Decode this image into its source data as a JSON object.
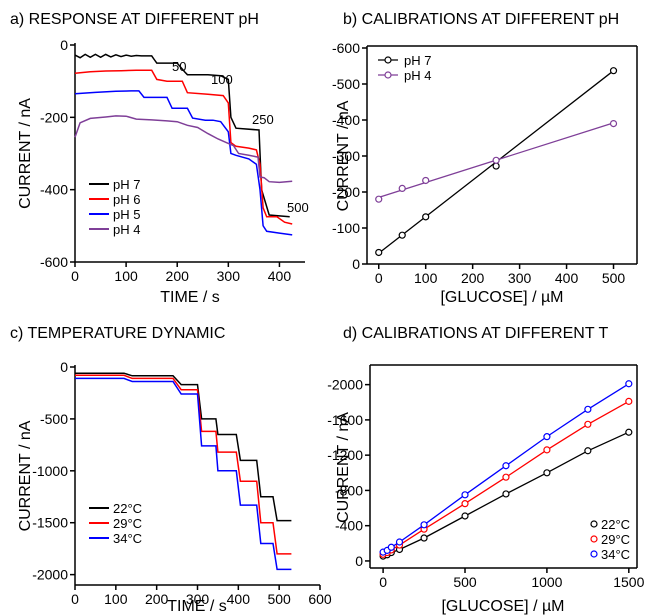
{
  "chart_data": [
    {
      "panel": "a",
      "type": "line",
      "title": "a) RESPONSE AT DIFFERENT pH",
      "xlabel": "TIME / s",
      "ylabel": "CURRENT / nA",
      "xlim": [
        0,
        450
      ],
      "ylim": [
        -600,
        0
      ],
      "xticks": [
        "0",
        "100",
        "200",
        "300",
        "400"
      ],
      "yticks": [
        "0",
        "-200",
        "-400",
        "-600"
      ],
      "legend_position": "bottom-left",
      "annotations": [
        "50",
        "100",
        "250",
        "500"
      ],
      "series": [
        {
          "name": "pH 7",
          "color": "#000000",
          "x": [
            0,
            10,
            20,
            30,
            40,
            50,
            60,
            70,
            80,
            90,
            100,
            110,
            120,
            130,
            140,
            150,
            155,
            160,
            200,
            215,
            220,
            260,
            285,
            300,
            305,
            315,
            360,
            365,
            380,
            420
          ],
          "y": [
            -28,
            -35,
            -26,
            -34,
            -26,
            -34,
            -26,
            -33,
            -27,
            -32,
            -28,
            -31,
            -29,
            -30,
            -30,
            -30,
            -40,
            -50,
            -50,
            -75,
            -82,
            -82,
            -85,
            -95,
            -200,
            -230,
            -235,
            -400,
            -470,
            -475
          ]
        },
        {
          "name": "pH 6",
          "color": "#ff0000",
          "x": [
            0,
            30,
            60,
            90,
            120,
            150,
            160,
            180,
            210,
            220,
            260,
            290,
            300,
            305,
            315,
            340,
            355,
            362,
            368,
            375,
            395,
            410,
            425
          ],
          "y": [
            -78,
            -74,
            -72,
            -71,
            -70,
            -70,
            -95,
            -100,
            -100,
            -132,
            -136,
            -140,
            -160,
            -270,
            -280,
            -285,
            -290,
            -330,
            -450,
            -475,
            -475,
            -490,
            -495
          ]
        },
        {
          "name": "pH 5",
          "color": "#0000ff",
          "x": [
            0,
            40,
            80,
            110,
            125,
            135,
            180,
            190,
            200,
            220,
            230,
            255,
            270,
            285,
            300,
            305,
            315,
            340,
            355,
            362,
            368,
            375,
            400,
            425
          ],
          "y": [
            -135,
            -131,
            -128,
            -127,
            -127,
            -145,
            -145,
            -175,
            -175,
            -175,
            -202,
            -208,
            -208,
            -212,
            -240,
            -300,
            -305,
            -315,
            -330,
            -400,
            -500,
            -515,
            -520,
            -525
          ]
        },
        {
          "name": "pH 4",
          "color": "#7f3f98",
          "x": [
            0,
            10,
            30,
            60,
            80,
            100,
            120,
            150,
            180,
            200,
            220,
            240,
            260,
            280,
            300,
            310,
            320,
            340,
            358,
            362,
            370,
            380,
            400,
            425
          ],
          "y": [
            -255,
            -215,
            -203,
            -199,
            -196,
            -197,
            -205,
            -207,
            -210,
            -212,
            -222,
            -228,
            -245,
            -260,
            -272,
            -278,
            -300,
            -305,
            -310,
            -365,
            -367,
            -378,
            -380,
            -377
          ]
        }
      ]
    },
    {
      "panel": "b",
      "type": "scatter",
      "title": "b) CALIBRATIONS AT DIFFERENT pH",
      "xlabel": "[GLUCOSE] / µM",
      "ylabel": "CURRENT / nA",
      "xlim": [
        -25,
        550
      ],
      "ylim": [
        0,
        -600
      ],
      "xticks": [
        "0",
        "100",
        "200",
        "300",
        "400",
        "500"
      ],
      "yticks": [
        "-600",
        "-500",
        "-400",
        "-300",
        "-200",
        "-100",
        "0"
      ],
      "legend_position": "top-left",
      "series": [
        {
          "name": "pH 7",
          "color": "#000000",
          "x": [
            0,
            50,
            100,
            250,
            500
          ],
          "y": [
            -32,
            -80,
            -131,
            -272,
            -537
          ],
          "fit": [
            [
              0,
              -30
            ],
            [
              500,
              -537
            ]
          ]
        },
        {
          "name": "pH 4",
          "color": "#7f3f98",
          "x": [
            0,
            50,
            100,
            250,
            500
          ],
          "y": [
            -180,
            -210,
            -232,
            -288,
            -390
          ],
          "fit": [
            [
              0,
              -185
            ],
            [
              500,
              -392
            ]
          ]
        }
      ]
    },
    {
      "panel": "c",
      "type": "line",
      "title": "c) TEMPERATURE DYNAMIC",
      "xlabel": "TIME / s",
      "ylabel": "CURRENT / nA",
      "xlim": [
        0,
        600
      ],
      "ylim": [
        -2100,
        0
      ],
      "xticks": [
        "0",
        "100",
        "200",
        "300",
        "400",
        "500",
        "600"
      ],
      "yticks": [
        "0",
        "-500",
        "-1000",
        "-1500",
        "-2000"
      ],
      "legend_position": "bottom-left",
      "series": [
        {
          "name": "22°C",
          "color": "#000000",
          "x": [
            0,
            120,
            140,
            240,
            260,
            300,
            310,
            345,
            350,
            395,
            405,
            445,
            455,
            485,
            495,
            530
          ],
          "y": [
            -60,
            -60,
            -85,
            -85,
            -170,
            -170,
            -500,
            -500,
            -650,
            -650,
            -900,
            -900,
            -1250,
            -1250,
            -1480,
            -1480
          ]
        },
        {
          "name": "29°C",
          "color": "#ff0000",
          "x": [
            0,
            120,
            140,
            240,
            260,
            300,
            310,
            345,
            350,
            395,
            405,
            445,
            455,
            485,
            495,
            530
          ],
          "y": [
            -80,
            -80,
            -110,
            -110,
            -220,
            -220,
            -620,
            -620,
            -820,
            -820,
            -1100,
            -1100,
            -1500,
            -1500,
            -1800,
            -1800
          ]
        },
        {
          "name": "34°C",
          "color": "#0000ff",
          "x": [
            0,
            120,
            140,
            240,
            260,
            300,
            310,
            345,
            350,
            395,
            405,
            445,
            455,
            485,
            495,
            530
          ],
          "y": [
            -110,
            -110,
            -140,
            -140,
            -260,
            -260,
            -760,
            -760,
            -1000,
            -1000,
            -1330,
            -1330,
            -1700,
            -1700,
            -1950,
            -1950
          ]
        }
      ]
    },
    {
      "panel": "d",
      "type": "scatter",
      "title": "d) CALIBRATIONS AT DIFFERENT T",
      "xlabel": "[GLUCOSE] / µM",
      "ylabel": "CURRENT / nA",
      "xlim": [
        -80,
        1550
      ],
      "ylim": [
        80,
        -2200
      ],
      "xticks": [
        "0",
        "500",
        "1000",
        "1500"
      ],
      "yticks": [
        "-2000",
        "-1600",
        "-1200",
        "-800",
        "-400",
        "0"
      ],
      "legend_position": "bottom-right",
      "series": [
        {
          "name": "22°C",
          "color": "#000000",
          "x": [
            0,
            25,
            50,
            100,
            250,
            500,
            750,
            1000,
            1250,
            1500
          ],
          "y": [
            -55,
            -70,
            -95,
            -130,
            -260,
            -510,
            -760,
            -1000,
            -1250,
            -1460
          ]
        },
        {
          "name": "29°C",
          "color": "#ff0000",
          "x": [
            0,
            25,
            50,
            100,
            250,
            500,
            750,
            1000,
            1250,
            1500
          ],
          "y": [
            -75,
            -95,
            -125,
            -180,
            -360,
            -650,
            -950,
            -1260,
            -1550,
            -1810
          ]
        },
        {
          "name": "34°C",
          "color": "#0000ff",
          "x": [
            0,
            25,
            50,
            100,
            250,
            500,
            750,
            1000,
            1250,
            1500
          ],
          "y": [
            -100,
            -120,
            -155,
            -215,
            -410,
            -750,
            -1080,
            -1410,
            -1720,
            -2010
          ]
        }
      ]
    }
  ]
}
